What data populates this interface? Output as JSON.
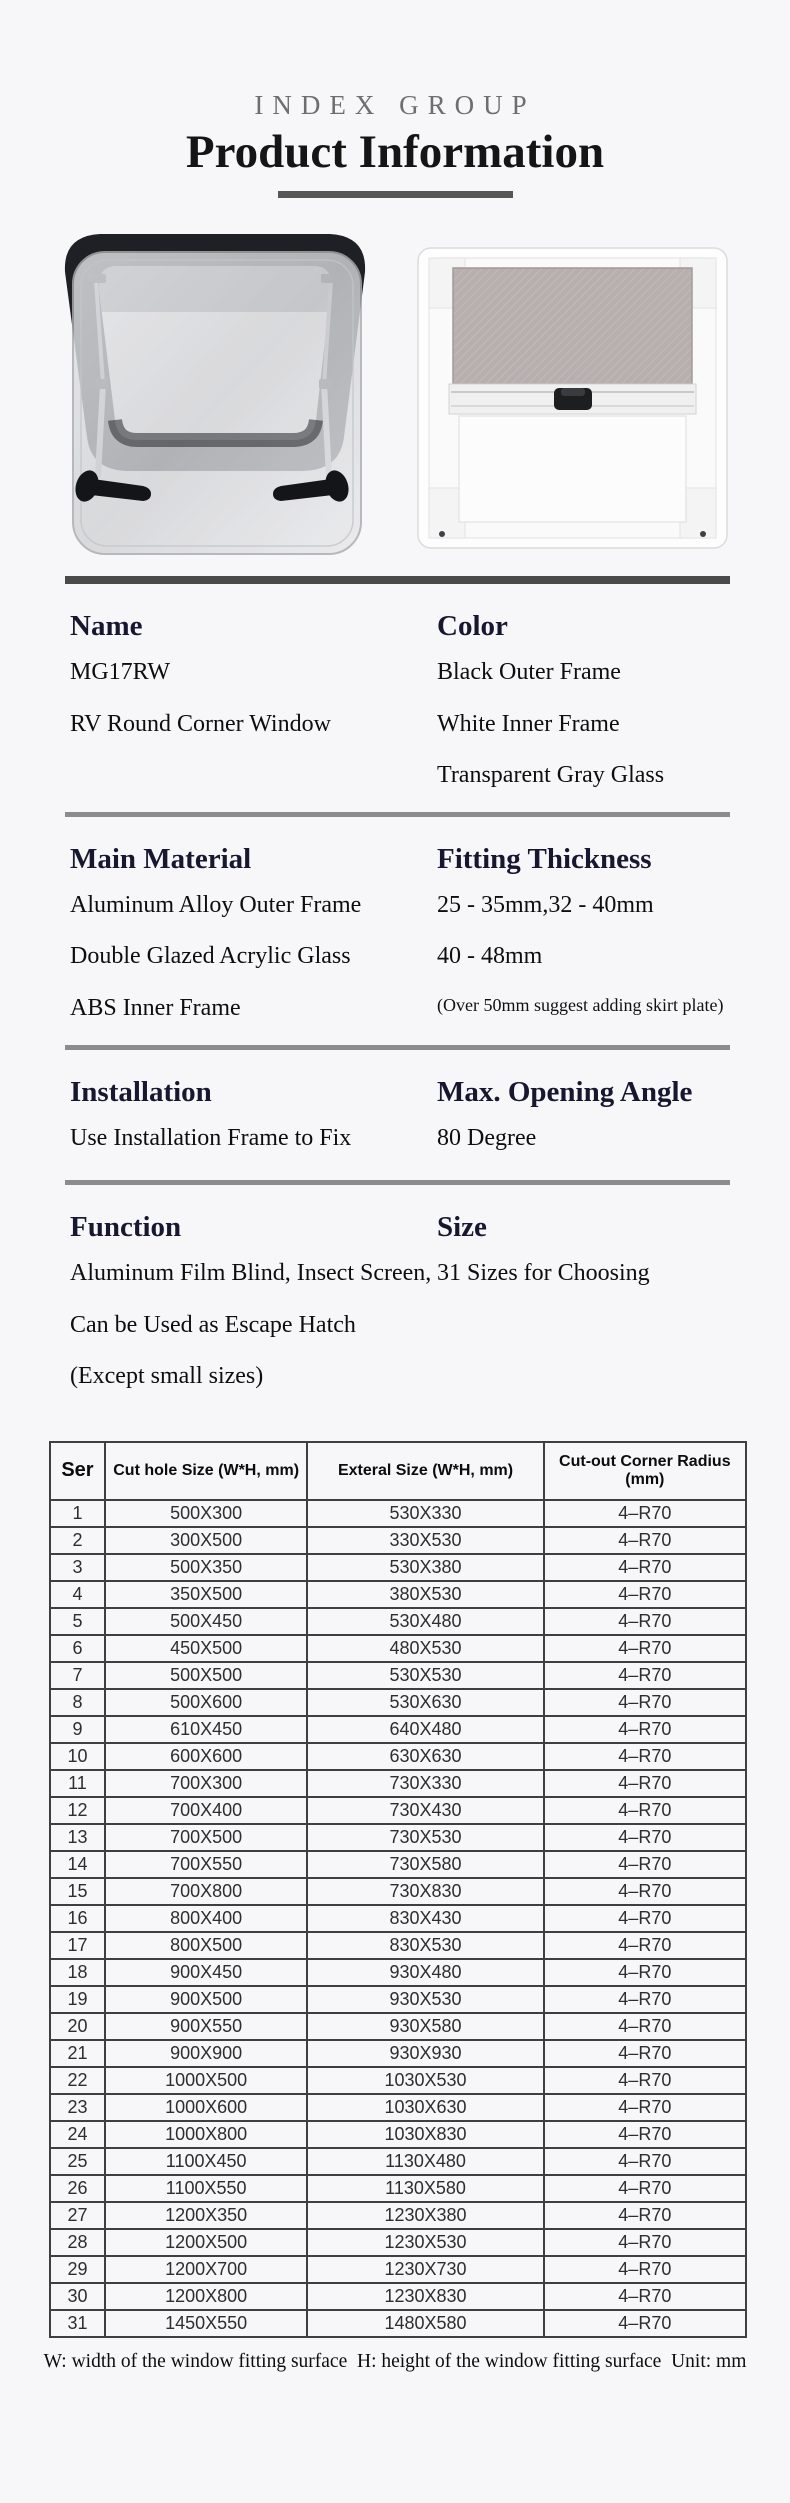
{
  "header": {
    "brand": "INDEX GROUP",
    "title": "Product Information"
  },
  "images": {
    "left": "rv-window-outer-black-frame-opened",
    "right": "rv-window-inner-white-frame-with-blind-and-screen"
  },
  "sections": [
    {
      "left": {
        "heading": "Name",
        "lines": [
          "MG17RW",
          "RV Round Corner Window"
        ]
      },
      "right": {
        "heading": "Color",
        "lines": [
          "Black Outer Frame",
          "White Inner Frame",
          "Transparent Gray Glass"
        ]
      }
    },
    {
      "left": {
        "heading": "Main Material",
        "lines": [
          "Aluminum Alloy Outer Frame",
          "Double Glazed Acrylic Glass",
          "ABS Inner Frame"
        ]
      },
      "right": {
        "heading": "Fitting Thickness",
        "lines": [
          "25 - 35mm,32 - 40mm",
          "40 - 48mm"
        ],
        "note": "(Over 50mm suggest adding skirt plate)"
      }
    },
    {
      "left": {
        "heading": "Installation",
        "lines": [
          "Use Installation Frame to Fix"
        ]
      },
      "right": {
        "heading": "Max. Opening Angle",
        "lines": [
          "80 Degree"
        ]
      }
    },
    {
      "left": {
        "heading": "Function",
        "lines": [
          "Aluminum Film Blind, Insect Screen,",
          "Can be Used as Escape Hatch",
          "(Except small sizes)"
        ]
      },
      "right": {
        "heading": "Size",
        "lines": [
          "31 Sizes for Choosing"
        ]
      }
    }
  ],
  "table": {
    "headers": [
      "Ser",
      "Cut hole Size (W*H, mm)",
      "Exteral Size (W*H, mm)",
      "Cut-out Corner Radius (mm)"
    ],
    "rows": [
      [
        "1",
        "500X300",
        "530X330",
        "4–R70"
      ],
      [
        "2",
        "300X500",
        "330X530",
        "4–R70"
      ],
      [
        "3",
        "500X350",
        "530X380",
        "4–R70"
      ],
      [
        "4",
        "350X500",
        "380X530",
        "4–R70"
      ],
      [
        "5",
        "500X450",
        "530X480",
        "4–R70"
      ],
      [
        "6",
        "450X500",
        "480X530",
        "4–R70"
      ],
      [
        "7",
        "500X500",
        "530X530",
        "4–R70"
      ],
      [
        "8",
        "500X600",
        "530X630",
        "4–R70"
      ],
      [
        "9",
        "610X450",
        "640X480",
        "4–R70"
      ],
      [
        "10",
        "600X600",
        "630X630",
        "4–R70"
      ],
      [
        "11",
        "700X300",
        "730X330",
        "4–R70"
      ],
      [
        "12",
        "700X400",
        "730X430",
        "4–R70"
      ],
      [
        "13",
        "700X500",
        "730X530",
        "4–R70"
      ],
      [
        "14",
        "700X550",
        "730X580",
        "4–R70"
      ],
      [
        "15",
        "700X800",
        "730X830",
        "4–R70"
      ],
      [
        "16",
        "800X400",
        "830X430",
        "4–R70"
      ],
      [
        "17",
        "800X500",
        "830X530",
        "4–R70"
      ],
      [
        "18",
        "900X450",
        "930X480",
        "4–R70"
      ],
      [
        "19",
        "900X500",
        "930X530",
        "4–R70"
      ],
      [
        "20",
        "900X550",
        "930X580",
        "4–R70"
      ],
      [
        "21",
        "900X900",
        "930X930",
        "4–R70"
      ],
      [
        "22",
        "1000X500",
        "1030X530",
        "4–R70"
      ],
      [
        "23",
        "1000X600",
        "1030X630",
        "4–R70"
      ],
      [
        "24",
        "1000X800",
        "1030X830",
        "4–R70"
      ],
      [
        "25",
        "1100X450",
        "1130X480",
        "4–R70"
      ],
      [
        "26",
        "1100X550",
        "1130X580",
        "4–R70"
      ],
      [
        "27",
        "1200X350",
        "1230X380",
        "4–R70"
      ],
      [
        "28",
        "1200X500",
        "1230X530",
        "4–R70"
      ],
      [
        "29",
        "1200X700",
        "1230X730",
        "4–R70"
      ],
      [
        "30",
        "1200X800",
        "1230X830",
        "4–R70"
      ],
      [
        "31",
        "1450X550",
        "1480X580",
        "4–R70"
      ]
    ],
    "footnote": "W: width of the window fitting surface  H: height of the window fitting surface  Unit: mm"
  },
  "colors": {
    "background": "#f7f6f8",
    "heading_navy": "#17172f",
    "divider_dark": "#4a4a4a",
    "divider_gray": "#8c8c8c",
    "table_border": "#3f3f3f",
    "brand_gray": "#6e6e6e"
  }
}
